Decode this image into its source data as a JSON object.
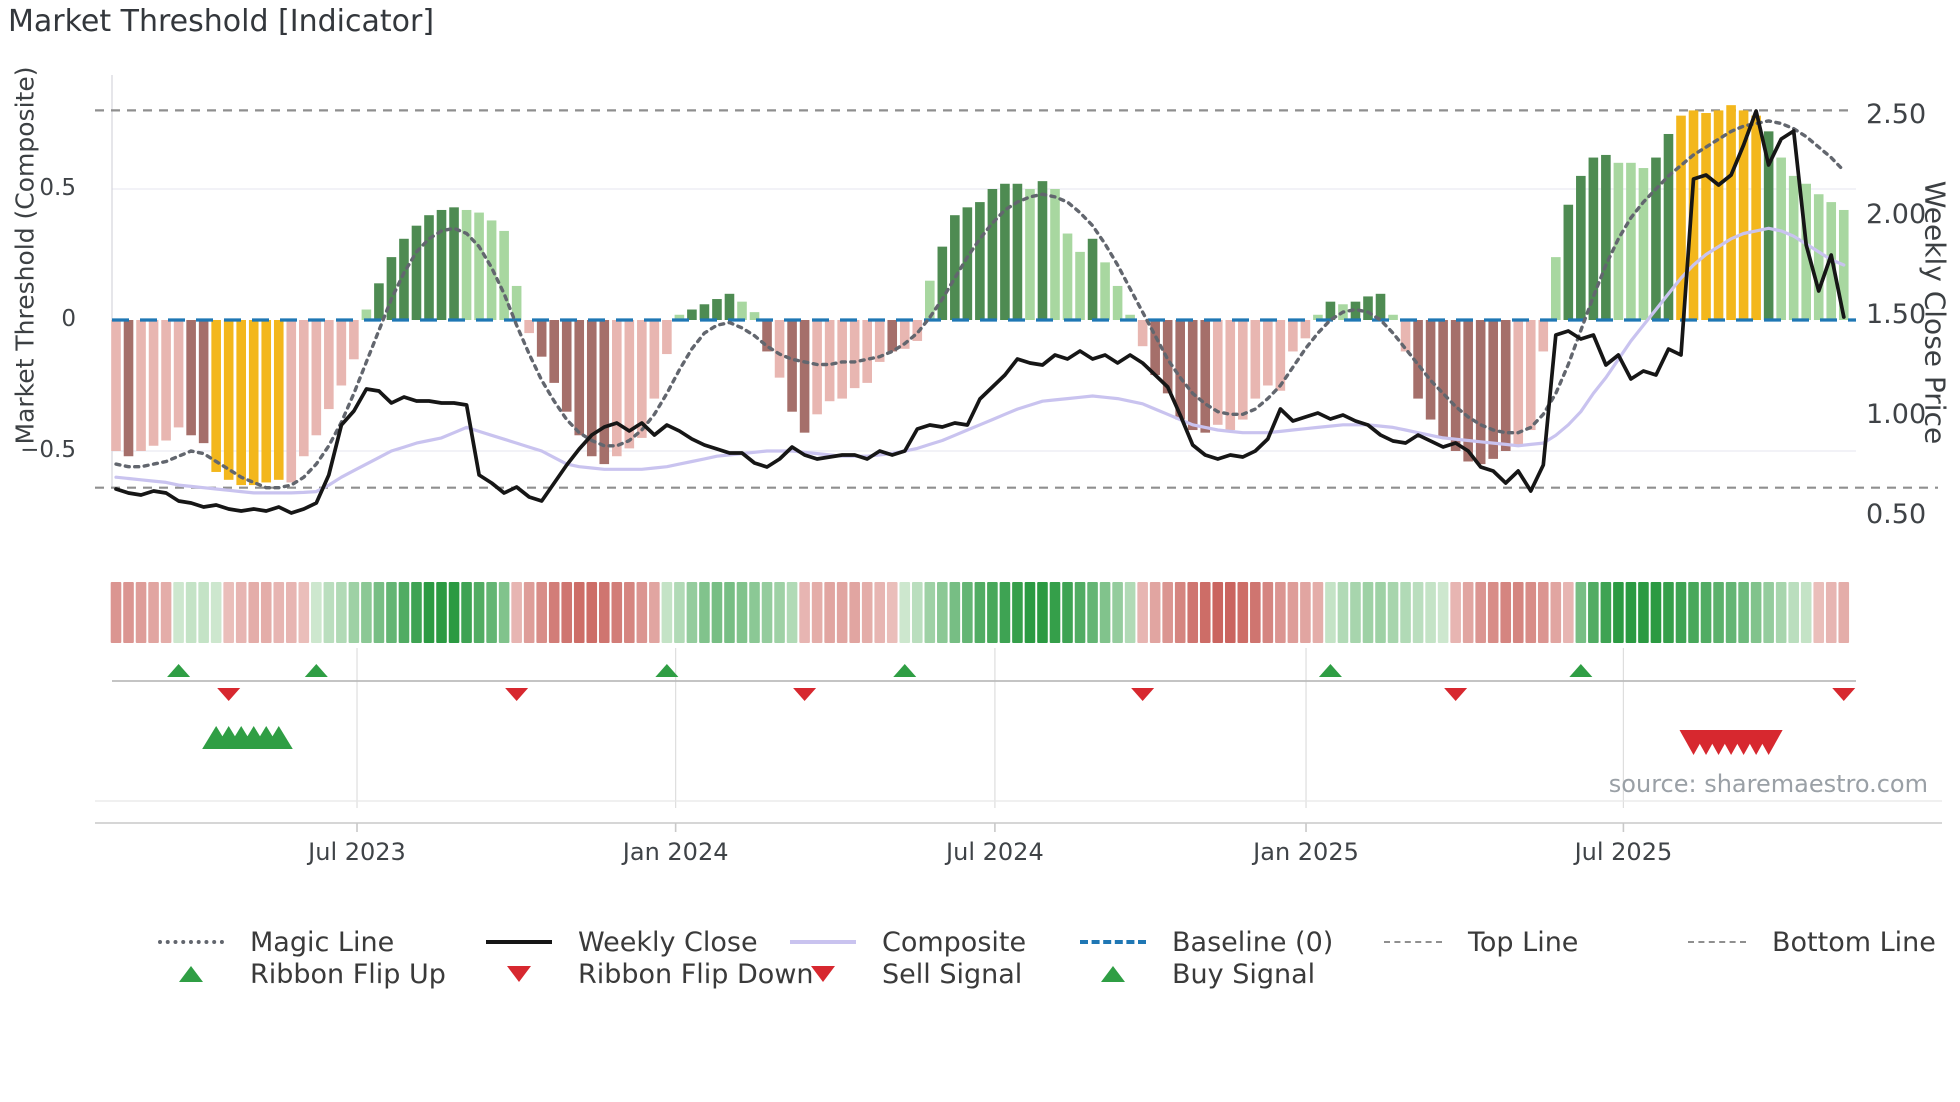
{
  "title": "Market Threshold [Indicator]",
  "source_note": "source: sharemaestro.com",
  "colors": {
    "bar_pink": "#e8b6b1",
    "bar_dark_red": "#a56f6a",
    "bar_signal_yellow": "#f3b71c",
    "bar_light_green": "#a8d7a0",
    "bar_dark_green": "#4e8b52",
    "magic_line": "#62666e",
    "weekly_close": "#161616",
    "composite_line": "#c9c3ef",
    "baseline_blue": "#1f77b4",
    "threshold_gray": "#8f8f8f",
    "flip_up_green": "#2f9e44",
    "flip_down_red": "#d7282f",
    "ribbon_green_deep": "#2b9a42",
    "ribbon_green_pale": "#eaf5e7",
    "ribbon_red_deep": "#be443e",
    "ribbon_red_pale": "#f8e6e3",
    "grid_line": "#e9e9f2",
    "panel_line": "#c9c9c9",
    "axis_text": "#3f4347"
  },
  "axes": {
    "left": {
      "title": "Market Threshold (Composite)",
      "ticks": [
        {
          "label": "0.5",
          "value": 0.5
        },
        {
          "label": "0",
          "value": 0.0
        },
        {
          "label": "−0.5",
          "value": -0.5
        }
      ]
    },
    "right": {
      "title": "Weekly Close Price",
      "ticks": [
        {
          "label": "2.50",
          "value": 2.5
        },
        {
          "label": "2.00",
          "value": 2.0
        },
        {
          "label": "1.50",
          "value": 1.5
        },
        {
          "label": "1.00",
          "value": 1.0
        },
        {
          "label": "0.50",
          "value": 0.5
        }
      ]
    }
  },
  "legend": {
    "items": [
      {
        "label": "Magic Line",
        "swatch": "dotted-line",
        "color_key": "magic_line"
      },
      {
        "label": "Weekly Close",
        "swatch": "solid-line",
        "color_key": "weekly_close"
      },
      {
        "label": "Composite",
        "swatch": "solid-line",
        "color_key": "composite_line"
      },
      {
        "label": "Baseline (0)",
        "swatch": "dashed-line",
        "color_key": "baseline_blue"
      },
      {
        "label": "Top Line",
        "swatch": "dashed-line-thin",
        "color_key": "threshold_gray"
      },
      {
        "label": "Bottom Line",
        "swatch": "dashed-line-thin",
        "color_key": "threshold_gray"
      },
      {
        "label": "Ribbon Flip Up",
        "swatch": "triangle-up",
        "color_key": "flip_up_green"
      },
      {
        "label": "Ribbon Flip Down",
        "swatch": "triangle-down",
        "color_key": "flip_down_red"
      },
      {
        "label": "Sell Signal",
        "swatch": "triangle-down",
        "color_key": "flip_down_red"
      },
      {
        "label": "Buy Signal",
        "swatch": "triangle-up",
        "color_key": "flip_up_green"
      }
    ]
  },
  "chart_data": {
    "type": "bar",
    "subtype": "weekly composite bars + overlay lines + flip ribbon + signal markers",
    "weeks": 139,
    "x_unit": "week",
    "x_ticks": [
      {
        "label": "Jul 2023",
        "week": 19.25
      },
      {
        "label": "Jan 2024",
        "week": 44.7
      },
      {
        "label": "Jul 2024",
        "week": 70.2
      },
      {
        "label": "Jan 2025",
        "week": 95.05
      },
      {
        "label": "Jul 2025",
        "week": 120.4
      }
    ],
    "baseline": 0,
    "top_line": 0.8,
    "bottom_line": -0.64,
    "ylim_composite": [
      -0.78,
      0.93
    ],
    "ylim_price": [
      0.42,
      2.72
    ],
    "grid_values_composite": [
      0.5,
      -0.5
    ],
    "composite_bars": {
      "name": "Market Threshold (Composite) bars",
      "axis": "composite",
      "values": [
        -0.5,
        -0.52,
        -0.5,
        -0.48,
        -0.46,
        -0.41,
        -0.44,
        -0.47,
        -0.58,
        -0.61,
        -0.63,
        -0.63,
        -0.62,
        -0.61,
        -0.62,
        -0.52,
        -0.44,
        -0.34,
        -0.25,
        -0.15,
        0.04,
        0.14,
        0.24,
        0.31,
        0.36,
        0.4,
        0.42,
        0.43,
        0.42,
        0.41,
        0.38,
        0.34,
        0.13,
        -0.05,
        -0.14,
        -0.24,
        -0.35,
        -0.44,
        -0.52,
        -0.55,
        -0.52,
        -0.49,
        -0.45,
        -0.3,
        -0.13,
        0.02,
        0.04,
        0.06,
        0.08,
        0.1,
        0.07,
        0.03,
        -0.12,
        -0.22,
        -0.35,
        -0.43,
        -0.36,
        -0.31,
        -0.3,
        -0.26,
        -0.24,
        -0.16,
        -0.12,
        -0.11,
        -0.08,
        0.15,
        0.28,
        0.4,
        0.43,
        0.45,
        0.5,
        0.52,
        0.52,
        0.5,
        0.53,
        0.5,
        0.33,
        0.26,
        0.31,
        0.22,
        0.13,
        0.02,
        -0.1,
        -0.21,
        -0.28,
        -0.38,
        -0.42,
        -0.43,
        -0.4,
        -0.42,
        -0.38,
        -0.3,
        -0.25,
        -0.27,
        -0.12,
        -0.07,
        0.02,
        0.07,
        0.06,
        0.07,
        0.09,
        0.1,
        0.02,
        -0.12,
        -0.3,
        -0.38,
        -0.45,
        -0.5,
        -0.54,
        -0.55,
        -0.53,
        -0.5,
        -0.48,
        -0.42,
        -0.12,
        0.24,
        0.44,
        0.55,
        0.62,
        0.63,
        0.6,
        0.6,
        0.58,
        0.62,
        0.71,
        0.78,
        0.8,
        0.79,
        0.8,
        0.82,
        0.8,
        0.78,
        0.72,
        0.62,
        0.55,
        0.52,
        0.48,
        0.45,
        0.42
      ],
      "color_legend": "p=pink r=dark-red y=signal-yellow g=light-green G=dark-green",
      "color_codes": "prpppprryyyyyyppppppgGGGGGGGgggggprrrrrrpppppgGGGGggrprrppppppr ppgGGGGGGGgGgggGgggprrrrrppppppppgGgGGGgprrrrrrrrpppgGGGGgggGGyyyyyyyGgggggg"
    },
    "series": [
      {
        "name": "Magic Line",
        "type": "line",
        "style": "dotted",
        "axis": "composite",
        "values": [
          -0.55,
          -0.56,
          -0.56,
          -0.55,
          -0.54,
          -0.52,
          -0.5,
          -0.51,
          -0.54,
          -0.57,
          -0.6,
          -0.62,
          -0.64,
          -0.64,
          -0.63,
          -0.6,
          -0.55,
          -0.48,
          -0.39,
          -0.28,
          -0.16,
          -0.04,
          0.08,
          0.18,
          0.26,
          0.31,
          0.34,
          0.35,
          0.33,
          0.28,
          0.2,
          0.1,
          -0.02,
          -0.13,
          -0.23,
          -0.31,
          -0.38,
          -0.43,
          -0.46,
          -0.48,
          -0.48,
          -0.46,
          -0.42,
          -0.36,
          -0.28,
          -0.19,
          -0.11,
          -0.05,
          -0.02,
          -0.01,
          -0.03,
          -0.06,
          -0.1,
          -0.13,
          -0.15,
          -0.16,
          -0.17,
          -0.17,
          -0.16,
          -0.16,
          -0.15,
          -0.14,
          -0.12,
          -0.09,
          -0.05,
          0.01,
          0.08,
          0.16,
          0.24,
          0.31,
          0.37,
          0.42,
          0.45,
          0.47,
          0.48,
          0.47,
          0.45,
          0.41,
          0.36,
          0.29,
          0.21,
          0.12,
          0.03,
          -0.06,
          -0.15,
          -0.22,
          -0.28,
          -0.32,
          -0.35,
          -0.36,
          -0.36,
          -0.34,
          -0.3,
          -0.25,
          -0.18,
          -0.11,
          -0.05,
          0.0,
          0.03,
          0.04,
          0.03,
          0.0,
          -0.05,
          -0.11,
          -0.17,
          -0.23,
          -0.28,
          -0.33,
          -0.37,
          -0.4,
          -0.42,
          -0.43,
          -0.43,
          -0.41,
          -0.36,
          -0.28,
          -0.17,
          -0.04,
          0.09,
          0.21,
          0.31,
          0.39,
          0.45,
          0.5,
          0.55,
          0.59,
          0.63,
          0.66,
          0.69,
          0.72,
          0.74,
          0.75,
          0.76,
          0.75,
          0.73,
          0.7,
          0.66,
          0.62,
          0.57
        ]
      },
      {
        "name": "Weekly Close",
        "type": "line",
        "style": "solid",
        "axis": "price",
        "values": [
          0.63,
          0.61,
          0.6,
          0.62,
          0.61,
          0.57,
          0.56,
          0.54,
          0.55,
          0.53,
          0.52,
          0.53,
          0.52,
          0.54,
          0.51,
          0.53,
          0.56,
          0.7,
          0.95,
          1.02,
          1.13,
          1.12,
          1.06,
          1.09,
          1.07,
          1.07,
          1.06,
          1.06,
          1.05,
          0.7,
          0.66,
          0.61,
          0.64,
          0.59,
          0.57,
          0.66,
          0.75,
          0.83,
          0.9,
          0.94,
          0.96,
          0.92,
          0.96,
          0.9,
          0.95,
          0.92,
          0.88,
          0.85,
          0.83,
          0.81,
          0.81,
          0.76,
          0.74,
          0.78,
          0.84,
          0.8,
          0.78,
          0.79,
          0.8,
          0.8,
          0.78,
          0.82,
          0.8,
          0.82,
          0.93,
          0.95,
          0.94,
          0.96,
          0.95,
          1.08,
          1.14,
          1.2,
          1.28,
          1.26,
          1.25,
          1.3,
          1.28,
          1.32,
          1.28,
          1.3,
          1.26,
          1.3,
          1.26,
          1.2,
          1.14,
          1.0,
          0.85,
          0.8,
          0.78,
          0.8,
          0.79,
          0.82,
          0.88,
          1.03,
          0.97,
          0.99,
          1.01,
          0.98,
          1.0,
          0.97,
          0.95,
          0.9,
          0.87,
          0.86,
          0.9,
          0.87,
          0.84,
          0.86,
          0.82,
          0.74,
          0.72,
          0.66,
          0.72,
          0.62,
          0.75,
          1.4,
          1.42,
          1.38,
          1.4,
          1.25,
          1.3,
          1.18,
          1.22,
          1.2,
          1.33,
          1.3,
          2.18,
          2.2,
          2.15,
          2.2,
          2.35,
          2.52,
          2.25,
          2.38,
          2.42,
          1.85,
          1.62,
          1.8,
          1.49
        ]
      },
      {
        "name": "Composite",
        "type": "line",
        "style": "solid",
        "axis": "composite",
        "values": [
          -0.6,
          -0.605,
          -0.61,
          -0.615,
          -0.62,
          -0.63,
          -0.635,
          -0.64,
          -0.645,
          -0.65,
          -0.655,
          -0.66,
          -0.66,
          -0.66,
          -0.66,
          -0.658,
          -0.655,
          -0.63,
          -0.6,
          -0.575,
          -0.55,
          -0.525,
          -0.5,
          -0.485,
          -0.47,
          -0.46,
          -0.45,
          -0.43,
          -0.41,
          -0.425,
          -0.44,
          -0.455,
          -0.47,
          -0.485,
          -0.5,
          -0.525,
          -0.55,
          -0.56,
          -0.565,
          -0.57,
          -0.57,
          -0.57,
          -0.57,
          -0.565,
          -0.56,
          -0.55,
          -0.54,
          -0.53,
          -0.52,
          -0.515,
          -0.51,
          -0.505,
          -0.5,
          -0.5,
          -0.5,
          -0.505,
          -0.51,
          -0.515,
          -0.52,
          -0.52,
          -0.52,
          -0.515,
          -0.51,
          -0.5,
          -0.49,
          -0.475,
          -0.46,
          -0.44,
          -0.42,
          -0.4,
          -0.38,
          -0.36,
          -0.34,
          -0.325,
          -0.31,
          -0.305,
          -0.3,
          -0.295,
          -0.29,
          -0.295,
          -0.3,
          -0.31,
          -0.32,
          -0.34,
          -0.36,
          -0.38,
          -0.4,
          -0.41,
          -0.42,
          -0.425,
          -0.43,
          -0.43,
          -0.43,
          -0.425,
          -0.42,
          -0.415,
          -0.41,
          -0.405,
          -0.4,
          -0.4,
          -0.4,
          -0.405,
          -0.41,
          -0.42,
          -0.43,
          -0.44,
          -0.45,
          -0.455,
          -0.46,
          -0.465,
          -0.47,
          -0.475,
          -0.48,
          -0.475,
          -0.47,
          -0.44,
          -0.4,
          -0.35,
          -0.28,
          -0.22,
          -0.15,
          -0.08,
          -0.02,
          0.04,
          0.1,
          0.16,
          0.21,
          0.25,
          0.28,
          0.31,
          0.33,
          0.34,
          0.35,
          0.34,
          0.32,
          0.29,
          0.26,
          0.23,
          0.21
        ]
      }
    ],
    "ribbon": {
      "name": "flip ribbon heatmap (-1 deep red .. +1 deep green)",
      "values": [
        -0.5,
        -0.5,
        -0.45,
        -0.4,
        -0.35,
        0.15,
        0.2,
        0.2,
        0.15,
        -0.25,
        -0.3,
        -0.35,
        -0.35,
        -0.3,
        -0.3,
        -0.25,
        0.15,
        0.25,
        0.3,
        0.4,
        0.5,
        0.6,
        0.7,
        0.8,
        0.9,
        1.0,
        1.0,
        1.0,
        0.9,
        0.8,
        0.7,
        0.55,
        -0.3,
        -0.45,
        -0.55,
        -0.65,
        -0.7,
        -0.75,
        -0.75,
        -0.7,
        -0.65,
        -0.6,
        -0.5,
        -0.4,
        0.2,
        0.3,
        0.45,
        0.55,
        0.6,
        0.6,
        0.55,
        0.5,
        0.45,
        0.4,
        0.3,
        -0.3,
        -0.35,
        -0.4,
        -0.4,
        -0.4,
        -0.35,
        -0.3,
        -0.25,
        0.15,
        0.25,
        0.4,
        0.5,
        0.6,
        0.7,
        0.8,
        0.85,
        0.9,
        0.95,
        1.0,
        1.0,
        0.95,
        0.9,
        0.8,
        0.7,
        0.55,
        0.45,
        0.3,
        -0.3,
        -0.4,
        -0.5,
        -0.6,
        -0.7,
        -0.75,
        -0.8,
        -0.8,
        -0.75,
        -0.7,
        -0.6,
        -0.5,
        -0.45,
        -0.4,
        -0.35,
        0.2,
        0.3,
        0.35,
        0.4,
        0.4,
        0.35,
        0.3,
        0.25,
        0.2,
        0.15,
        -0.3,
        -0.4,
        -0.5,
        -0.55,
        -0.6,
        -0.6,
        -0.55,
        -0.5,
        -0.4,
        -0.3,
        0.6,
        0.8,
        0.9,
        1.0,
        1.0,
        1.0,
        1.0,
        0.95,
        0.9,
        0.85,
        0.8,
        0.75,
        0.7,
        0.65,
        0.55,
        0.45,
        0.35,
        0.25,
        0.2,
        -0.25,
        -0.3,
        -0.35
      ]
    },
    "markers": {
      "ribbon_flip_up_weeks": [
        5,
        16,
        44,
        63,
        97,
        117
      ],
      "ribbon_flip_down_weeks": [
        9,
        32,
        55,
        82,
        107,
        138
      ],
      "buy_signal_weeks": [
        8,
        9,
        10,
        11,
        12,
        13
      ],
      "sell_signal_weeks": [
        126,
        127,
        128,
        129,
        130,
        131,
        132
      ]
    }
  }
}
